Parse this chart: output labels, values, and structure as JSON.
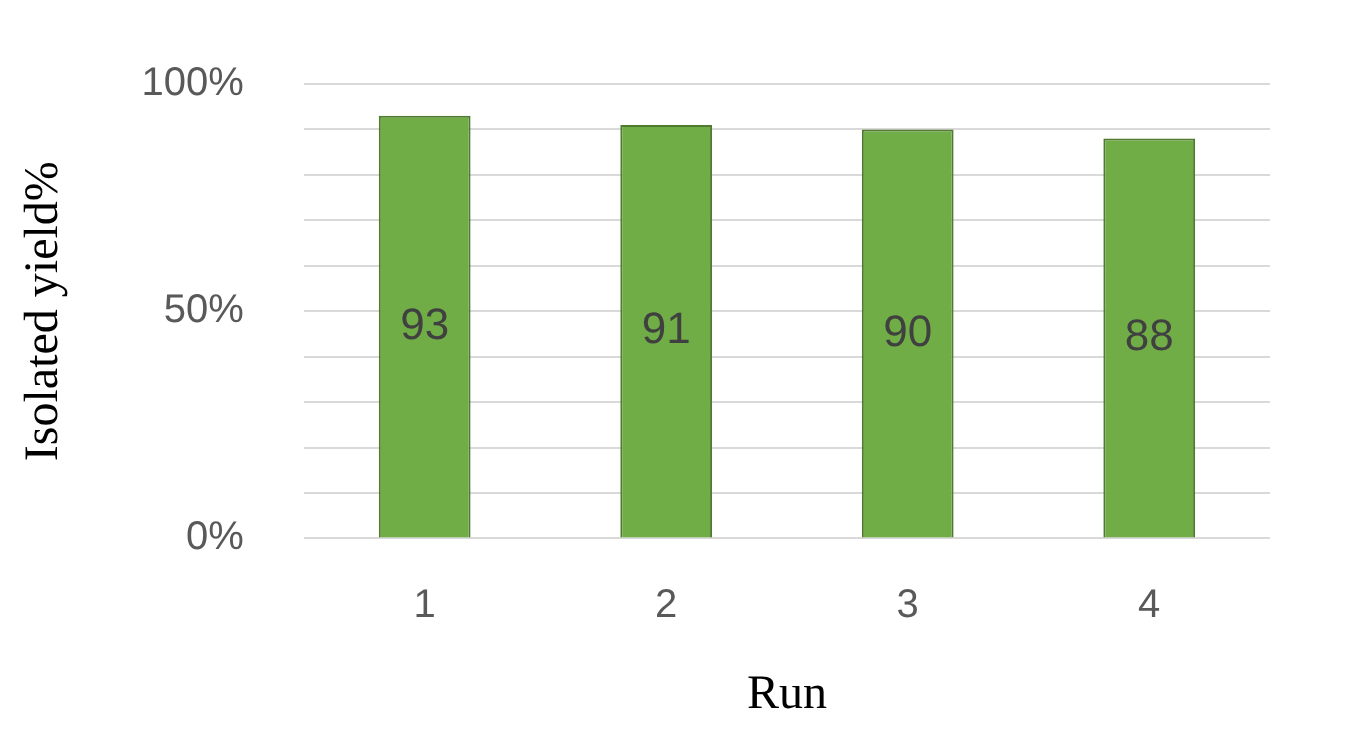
{
  "chart_data": {
    "type": "bar",
    "categories": [
      "1",
      "2",
      "3",
      "4"
    ],
    "values": [
      93,
      91,
      90,
      88
    ],
    "color": "#70ad47",
    "xlabel": "Run",
    "ylabel": "Isolated yield%",
    "ylim": [
      0,
      100
    ],
    "yticks": [
      {
        "value": 0,
        "label": "0%"
      },
      {
        "value": 10,
        "label": null
      },
      {
        "value": 20,
        "label": null
      },
      {
        "value": 30,
        "label": null
      },
      {
        "value": 40,
        "label": null
      },
      {
        "value": 50,
        "label": "50%"
      },
      {
        "value": 60,
        "label": null
      },
      {
        "value": 70,
        "label": null
      },
      {
        "value": 80,
        "label": null
      },
      {
        "value": 90,
        "label": null
      },
      {
        "value": 100,
        "label": "100%"
      }
    ],
    "grid": "y",
    "data_labels": true,
    "legend": false
  }
}
